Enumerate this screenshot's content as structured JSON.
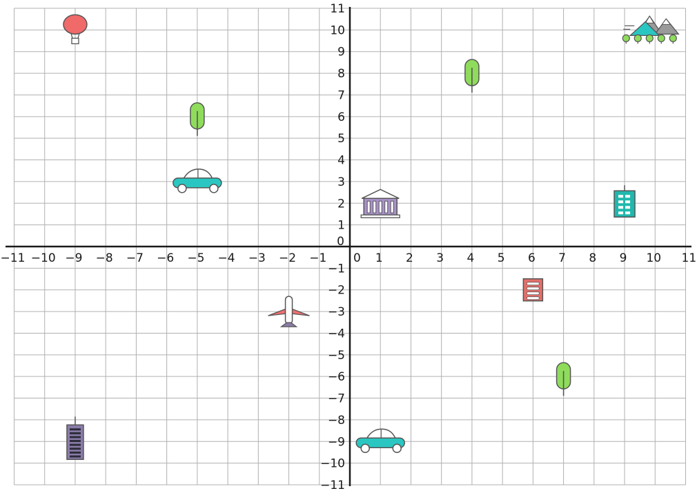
{
  "grid": {
    "x_range": [
      -11,
      11
    ],
    "y_range": [
      -11,
      11
    ],
    "tick_step": 1,
    "x_tick_labels": [
      "−11",
      "−10",
      "−9",
      "−8",
      "−7",
      "−6",
      "−5",
      "−4",
      "−3",
      "−2",
      "−1",
      "0",
      "1",
      "2",
      "3",
      "4",
      "5",
      "6",
      "7",
      "8",
      "9",
      "10",
      "11"
    ],
    "y_tick_labels": [
      "−11",
      "−10",
      "−9",
      "−8",
      "−7",
      "−6",
      "−5",
      "−4",
      "−3",
      "−2",
      "−1",
      "0",
      "1",
      "2",
      "3",
      "4",
      "5",
      "6",
      "7",
      "8",
      "9",
      "10",
      "11"
    ]
  },
  "objects": [
    {
      "icon": "hot-air-balloon-icon",
      "x": -9,
      "y": 10
    },
    {
      "icon": "tree-icon",
      "x": -5,
      "y": 6
    },
    {
      "icon": "car-icon",
      "x": -5,
      "y": 3
    },
    {
      "icon": "tree-icon",
      "x": 4,
      "y": 8
    },
    {
      "icon": "mountains-icon",
      "x": 10,
      "y": 10
    },
    {
      "icon": "museum-icon",
      "x": 1,
      "y": 2
    },
    {
      "icon": "office-building-icon",
      "x": 9,
      "y": 2
    },
    {
      "icon": "airplane-icon",
      "x": -2,
      "y": -3
    },
    {
      "icon": "shop-icon",
      "x": 6,
      "y": -2
    },
    {
      "icon": "tree-icon",
      "x": 7,
      "y": -6
    },
    {
      "icon": "tower-building-icon",
      "x": -9,
      "y": -9
    },
    {
      "icon": "car-icon",
      "x": 1,
      "y": -9
    }
  ],
  "colors": {
    "balloon": "#f06a6a",
    "tree": "#8fdc5c",
    "car": "#2ac7c2",
    "museum": "#a892c8",
    "teal_building": "#20b8ad",
    "shop": "#e2706a",
    "tower": "#8a7ca8",
    "airplane_wing": "#f07070",
    "mountain_gray": "#9a9a9a",
    "outline": "#555555"
  }
}
